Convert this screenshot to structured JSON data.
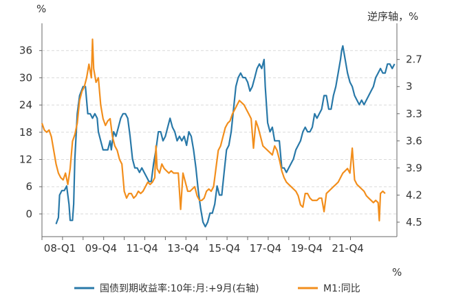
{
  "chart_data": {
    "type": "line",
    "x_ticks": [
      "08-Q1",
      "09-Q4",
      "11-Q4",
      "13-Q4",
      "15-Q4",
      "17-Q4",
      "19-Q4",
      "21-Q4"
    ],
    "x_range": [
      2008.0,
      2023.1
    ],
    "left_unit": "%",
    "right_unit": "逆序轴，%",
    "bottom_unit": "%",
    "left_axis": {
      "ticks": [
        "36",
        "30",
        "24",
        "18",
        "12",
        "6",
        "0"
      ],
      "tick_values": [
        36,
        30,
        24,
        18,
        12,
        6,
        0
      ],
      "ylim": [
        -5,
        42
      ]
    },
    "right_axis": {
      "ticks": [
        "2.7",
        "3",
        "3.3",
        "3.6",
        "3.9",
        "4.2",
        "4.5"
      ],
      "tick_values": [
        2.7,
        3.0,
        3.3,
        3.6,
        3.9,
        4.2,
        4.5
      ],
      "ylim": [
        2.3,
        4.66
      ],
      "inverted": true
    },
    "series": [
      {
        "name": "国债到期收益率:10年:月:+9月(右轴)",
        "axis": "right",
        "color": "#2878a8",
        "points": [
          [
            2008.6,
            4.52
          ],
          [
            2008.7,
            4.45
          ],
          [
            2008.75,
            4.2
          ],
          [
            2008.85,
            4.15
          ],
          [
            2008.95,
            4.15
          ],
          [
            2009.05,
            4.1
          ],
          [
            2009.15,
            4.3
          ],
          [
            2009.2,
            4.48
          ],
          [
            2009.3,
            4.48
          ],
          [
            2009.35,
            4.3
          ],
          [
            2009.4,
            3.8
          ],
          [
            2009.5,
            3.3
          ],
          [
            2009.6,
            3.1
          ],
          [
            2009.75,
            3.0
          ],
          [
            2009.85,
            3.0
          ],
          [
            2009.9,
            3.15
          ],
          [
            2009.95,
            3.3
          ],
          [
            2010.05,
            3.3
          ],
          [
            2010.15,
            3.35
          ],
          [
            2010.25,
            3.3
          ],
          [
            2010.35,
            3.35
          ],
          [
            2010.4,
            3.5
          ],
          [
            2010.5,
            3.6
          ],
          [
            2010.6,
            3.7
          ],
          [
            2010.7,
            3.7
          ],
          [
            2010.8,
            3.7
          ],
          [
            2010.9,
            3.6
          ],
          [
            2010.95,
            3.7
          ],
          [
            2011.05,
            3.5
          ],
          [
            2011.15,
            3.55
          ],
          [
            2011.25,
            3.45
          ],
          [
            2011.35,
            3.35
          ],
          [
            2011.45,
            3.3
          ],
          [
            2011.55,
            3.3
          ],
          [
            2011.65,
            3.35
          ],
          [
            2011.75,
            3.55
          ],
          [
            2011.85,
            3.8
          ],
          [
            2011.95,
            3.9
          ],
          [
            2012.05,
            3.9
          ],
          [
            2012.15,
            3.95
          ],
          [
            2012.25,
            3.9
          ],
          [
            2012.35,
            3.95
          ],
          [
            2012.45,
            4.0
          ],
          [
            2012.55,
            4.05
          ],
          [
            2012.65,
            4.05
          ],
          [
            2012.75,
            3.85
          ],
          [
            2012.85,
            3.7
          ],
          [
            2012.95,
            3.5
          ],
          [
            2013.05,
            3.5
          ],
          [
            2013.15,
            3.6
          ],
          [
            2013.25,
            3.55
          ],
          [
            2013.35,
            3.45
          ],
          [
            2013.45,
            3.35
          ],
          [
            2013.55,
            3.45
          ],
          [
            2013.65,
            3.5
          ],
          [
            2013.75,
            3.6
          ],
          [
            2013.85,
            3.55
          ],
          [
            2013.95,
            3.6
          ],
          [
            2014.05,
            3.55
          ],
          [
            2014.15,
            3.65
          ],
          [
            2014.25,
            3.5
          ],
          [
            2014.35,
            3.55
          ],
          [
            2014.45,
            3.7
          ],
          [
            2014.55,
            3.9
          ],
          [
            2014.65,
            4.15
          ],
          [
            2014.75,
            4.35
          ],
          [
            2014.85,
            4.5
          ],
          [
            2014.95,
            4.55
          ],
          [
            2015.05,
            4.5
          ],
          [
            2015.15,
            4.4
          ],
          [
            2015.25,
            4.4
          ],
          [
            2015.35,
            4.3
          ],
          [
            2015.45,
            4.1
          ],
          [
            2015.55,
            4.2
          ],
          [
            2015.65,
            4.2
          ],
          [
            2015.75,
            3.95
          ],
          [
            2015.85,
            3.7
          ],
          [
            2015.95,
            3.65
          ],
          [
            2016.05,
            3.5
          ],
          [
            2016.15,
            3.25
          ],
          [
            2016.25,
            3.0
          ],
          [
            2016.35,
            2.9
          ],
          [
            2016.45,
            2.85
          ],
          [
            2016.55,
            2.9
          ],
          [
            2016.65,
            2.9
          ],
          [
            2016.75,
            2.95
          ],
          [
            2016.85,
            3.05
          ],
          [
            2016.95,
            3.0
          ],
          [
            2017.05,
            2.9
          ],
          [
            2017.15,
            2.8
          ],
          [
            2017.25,
            2.75
          ],
          [
            2017.35,
            2.8
          ],
          [
            2017.45,
            2.7
          ],
          [
            2017.5,
            3.0
          ],
          [
            2017.6,
            3.4
          ],
          [
            2017.7,
            3.5
          ],
          [
            2017.8,
            3.45
          ],
          [
            2017.9,
            3.6
          ],
          [
            2018.0,
            3.6
          ],
          [
            2018.1,
            3.6
          ],
          [
            2018.2,
            3.9
          ],
          [
            2018.3,
            3.9
          ],
          [
            2018.4,
            3.95
          ],
          [
            2018.5,
            3.9
          ],
          [
            2018.6,
            3.85
          ],
          [
            2018.7,
            3.8
          ],
          [
            2018.8,
            3.7
          ],
          [
            2018.9,
            3.65
          ],
          [
            2019.0,
            3.6
          ],
          [
            2019.1,
            3.5
          ],
          [
            2019.2,
            3.45
          ],
          [
            2019.3,
            3.5
          ],
          [
            2019.4,
            3.5
          ],
          [
            2019.5,
            3.45
          ],
          [
            2019.6,
            3.3
          ],
          [
            2019.7,
            3.35
          ],
          [
            2019.8,
            3.3
          ],
          [
            2019.9,
            3.25
          ],
          [
            2020.0,
            3.1
          ],
          [
            2020.1,
            3.1
          ],
          [
            2020.2,
            3.25
          ],
          [
            2020.3,
            3.25
          ],
          [
            2020.4,
            3.1
          ],
          [
            2020.5,
            3.0
          ],
          [
            2020.6,
            2.85
          ],
          [
            2020.7,
            2.7
          ],
          [
            2020.75,
            2.6
          ],
          [
            2020.8,
            2.55
          ],
          [
            2020.9,
            2.7
          ],
          [
            2021.0,
            2.85
          ],
          [
            2021.1,
            2.95
          ],
          [
            2021.2,
            3.0
          ],
          [
            2021.3,
            3.1
          ],
          [
            2021.4,
            3.15
          ],
          [
            2021.5,
            3.2
          ],
          [
            2021.6,
            3.15
          ],
          [
            2021.7,
            3.2
          ],
          [
            2021.8,
            3.15
          ],
          [
            2021.9,
            3.1
          ],
          [
            2022.0,
            3.05
          ],
          [
            2022.1,
            3.0
          ],
          [
            2022.2,
            2.9
          ],
          [
            2022.3,
            2.85
          ],
          [
            2022.4,
            2.8
          ],
          [
            2022.5,
            2.85
          ],
          [
            2022.6,
            2.85
          ],
          [
            2022.7,
            2.75
          ],
          [
            2022.8,
            2.75
          ],
          [
            2022.9,
            2.8
          ],
          [
            2023.0,
            2.75
          ]
        ]
      },
      {
        "name": "M1:同比",
        "axis": "left",
        "color": "#f28e1c",
        "points": [
          [
            2008.0,
            20
          ],
          [
            2008.1,
            18.5
          ],
          [
            2008.2,
            18
          ],
          [
            2008.3,
            18.5
          ],
          [
            2008.4,
            17
          ],
          [
            2008.5,
            14
          ],
          [
            2008.6,
            11
          ],
          [
            2008.7,
            9
          ],
          [
            2008.8,
            8
          ],
          [
            2008.9,
            7.5
          ],
          [
            2009.0,
            9
          ],
          [
            2009.1,
            6.5
          ],
          [
            2009.2,
            10
          ],
          [
            2009.3,
            16
          ],
          [
            2009.4,
            17.5
          ],
          [
            2009.5,
            20
          ],
          [
            2009.6,
            25
          ],
          [
            2009.7,
            27
          ],
          [
            2009.8,
            28
          ],
          [
            2009.9,
            30
          ],
          [
            2010.0,
            33
          ],
          [
            2010.1,
            30
          ],
          [
            2010.15,
            38.5
          ],
          [
            2010.2,
            32
          ],
          [
            2010.3,
            29
          ],
          [
            2010.4,
            30
          ],
          [
            2010.5,
            24
          ],
          [
            2010.6,
            21
          ],
          [
            2010.7,
            19.5
          ],
          [
            2010.8,
            20.5
          ],
          [
            2010.9,
            21
          ],
          [
            2011.0,
            17
          ],
          [
            2011.1,
            15
          ],
          [
            2011.2,
            14
          ],
          [
            2011.3,
            12
          ],
          [
            2011.4,
            11
          ],
          [
            2011.5,
            5
          ],
          [
            2011.6,
            3.5
          ],
          [
            2011.7,
            4.5
          ],
          [
            2011.8,
            4.5
          ],
          [
            2011.9,
            3.5
          ],
          [
            2012.0,
            4
          ],
          [
            2012.1,
            5
          ],
          [
            2012.2,
            4.5
          ],
          [
            2012.3,
            5
          ],
          [
            2012.4,
            6
          ],
          [
            2012.5,
            7
          ],
          [
            2012.6,
            6.5
          ],
          [
            2012.7,
            7
          ],
          [
            2012.8,
            8
          ],
          [
            2012.85,
            15
          ],
          [
            2012.9,
            10
          ],
          [
            2013.0,
            9
          ],
          [
            2013.1,
            11
          ],
          [
            2013.2,
            10
          ],
          [
            2013.3,
            9.5
          ],
          [
            2013.4,
            9
          ],
          [
            2013.5,
            9.5
          ],
          [
            2013.6,
            9
          ],
          [
            2013.7,
            9
          ],
          [
            2013.8,
            9
          ],
          [
            2013.9,
            1
          ],
          [
            2014.0,
            9
          ],
          [
            2014.1,
            7
          ],
          [
            2014.2,
            5
          ],
          [
            2014.3,
            5
          ],
          [
            2014.4,
            5.5
          ],
          [
            2014.5,
            6
          ],
          [
            2014.6,
            4
          ],
          [
            2014.7,
            3
          ],
          [
            2014.8,
            3
          ],
          [
            2014.9,
            3.5
          ],
          [
            2015.0,
            5
          ],
          [
            2015.1,
            5.5
          ],
          [
            2015.2,
            5
          ],
          [
            2015.3,
            6
          ],
          [
            2015.4,
            10
          ],
          [
            2015.5,
            14
          ],
          [
            2015.6,
            15
          ],
          [
            2015.7,
            17
          ],
          [
            2015.8,
            19
          ],
          [
            2015.9,
            20
          ],
          [
            2016.0,
            20.5
          ],
          [
            2016.1,
            22
          ],
          [
            2016.2,
            23
          ],
          [
            2016.3,
            24
          ],
          [
            2016.4,
            25
          ],
          [
            2016.5,
            24.5
          ],
          [
            2016.6,
            24
          ],
          [
            2016.7,
            23
          ],
          [
            2016.8,
            22
          ],
          [
            2016.9,
            21
          ],
          [
            2017.0,
            14.5
          ],
          [
            2017.1,
            20.5
          ],
          [
            2017.2,
            19
          ],
          [
            2017.3,
            17
          ],
          [
            2017.4,
            15
          ],
          [
            2017.5,
            14.5
          ],
          [
            2017.6,
            14
          ],
          [
            2017.7,
            13.5
          ],
          [
            2017.8,
            13
          ],
          [
            2017.9,
            15
          ],
          [
            2018.0,
            14
          ],
          [
            2018.1,
            12
          ],
          [
            2018.2,
            9.5
          ],
          [
            2018.3,
            8
          ],
          [
            2018.4,
            7
          ],
          [
            2018.5,
            6.5
          ],
          [
            2018.6,
            6
          ],
          [
            2018.7,
            5.5
          ],
          [
            2018.8,
            5
          ],
          [
            2018.9,
            4
          ],
          [
            2019.0,
            2
          ],
          [
            2019.1,
            1.5
          ],
          [
            2019.2,
            4.5
          ],
          [
            2019.3,
            4.5
          ],
          [
            2019.4,
            3.5
          ],
          [
            2019.5,
            3
          ],
          [
            2019.6,
            3
          ],
          [
            2019.7,
            3
          ],
          [
            2019.8,
            3.5
          ],
          [
            2019.9,
            3.5
          ],
          [
            2020.0,
            0.5
          ],
          [
            2020.1,
            4.5
          ],
          [
            2020.2,
            5
          ],
          [
            2020.3,
            5.5
          ],
          [
            2020.4,
            6
          ],
          [
            2020.5,
            6.5
          ],
          [
            2020.6,
            7
          ],
          [
            2020.7,
            8
          ],
          [
            2020.8,
            9
          ],
          [
            2020.9,
            9.5
          ],
          [
            2021.0,
            10
          ],
          [
            2021.1,
            9
          ],
          [
            2021.2,
            14.5
          ],
          [
            2021.3,
            7.5
          ],
          [
            2021.4,
            6.5
          ],
          [
            2021.5,
            6
          ],
          [
            2021.6,
            5.5
          ],
          [
            2021.7,
            5
          ],
          [
            2021.8,
            4
          ],
          [
            2021.9,
            3.5
          ],
          [
            2022.0,
            3
          ],
          [
            2022.1,
            2.5
          ],
          [
            2022.2,
            3
          ],
          [
            2022.3,
            2.5
          ],
          [
            2022.35,
            -1.5
          ],
          [
            2022.4,
            4.5
          ],
          [
            2022.5,
            5
          ],
          [
            2022.6,
            4.5
          ]
        ]
      }
    ]
  }
}
